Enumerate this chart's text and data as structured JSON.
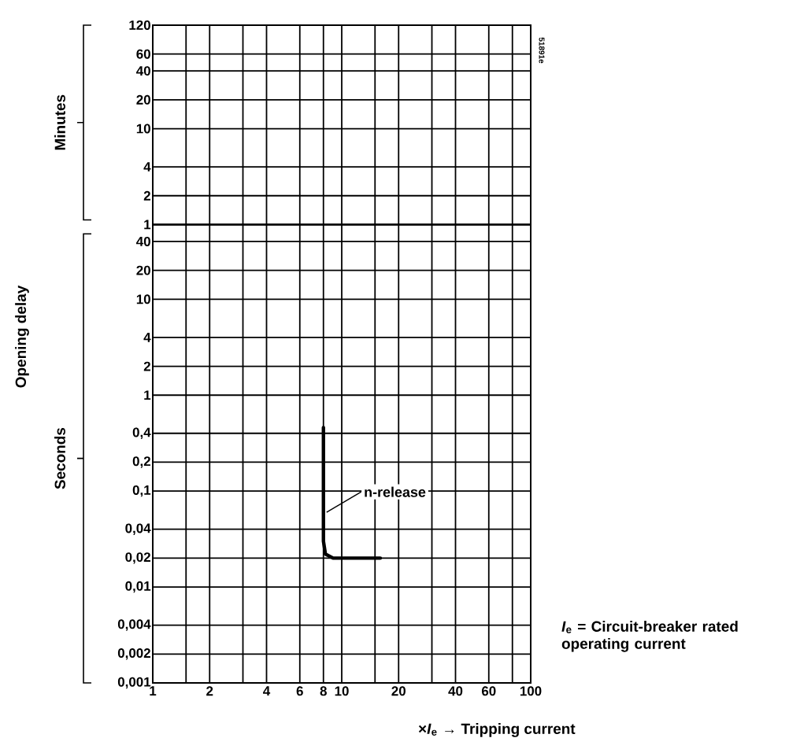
{
  "chart_data": [
    {
      "type": "line",
      "log": "xy",
      "grid": true,
      "tick_labels": "y",
      "xlim": [
        1,
        100
      ],
      "ylim": [
        1,
        120
      ],
      "xticks": [
        1,
        {
          "value": 1.5,
          "label": null
        },
        2,
        {
          "value": 3,
          "label": null
        },
        4,
        6,
        8,
        10,
        {
          "value": 15,
          "label": null
        },
        20,
        {
          "value": 30,
          "label": null
        },
        40,
        60,
        {
          "value": 80,
          "label": null
        },
        100
      ],
      "yticks": [
        1,
        2,
        4,
        10,
        20,
        40,
        60,
        120
      ],
      "annotations": [
        "Minutes",
        "Opening delay",
        "51891e"
      ]
    },
    {
      "type": "line",
      "xlabel": "×*I*$_{e}$ → Tripping current",
      "log": "xy",
      "grid": true,
      "marker": "none",
      "line_style": "solid",
      "xlim": [
        1,
        100
      ],
      "ylim": [
        0.001,
        60
      ],
      "xticks": [
        1,
        {
          "value": 1.5,
          "label": null
        },
        2,
        {
          "value": 3,
          "label": null
        },
        4,
        6,
        8,
        10,
        {
          "value": 15,
          "label": null
        },
        20,
        {
          "value": 30,
          "label": null
        },
        40,
        60,
        {
          "value": 80,
          "label": null
        },
        100
      ],
      "yticks": [
        {
          "value": 0.001,
          "label": "0,001"
        },
        {
          "value": 0.002,
          "label": "0,002"
        },
        {
          "value": 0.004,
          "label": "0,004"
        },
        {
          "value": 0.01,
          "label": "0,01"
        },
        {
          "value": 0.02,
          "label": "0,02"
        },
        {
          "value": 0.04,
          "label": "0,04"
        },
        {
          "value": 0.1,
          "label": "0,1"
        },
        {
          "value": 0.2,
          "label": "0,2"
        },
        {
          "value": 0.4,
          "label": "0,4"
        },
        1,
        2,
        4,
        10,
        20,
        40
      ],
      "series": [
        {
          "color": "#000000",
          "x": [
            8,
            8,
            8.2,
            9,
            16
          ],
          "values": [
            0.46,
            0.03,
            0.022,
            0.02,
            0.02
          ]
        }
      ],
      "annotations": [
        {
          "text": "n-release",
          "x": 8,
          "y": 0.06
        },
        "Seconds",
        "*I*$_{e}$ = Circuit-breaker rated operating current"
      ]
    }
  ]
}
